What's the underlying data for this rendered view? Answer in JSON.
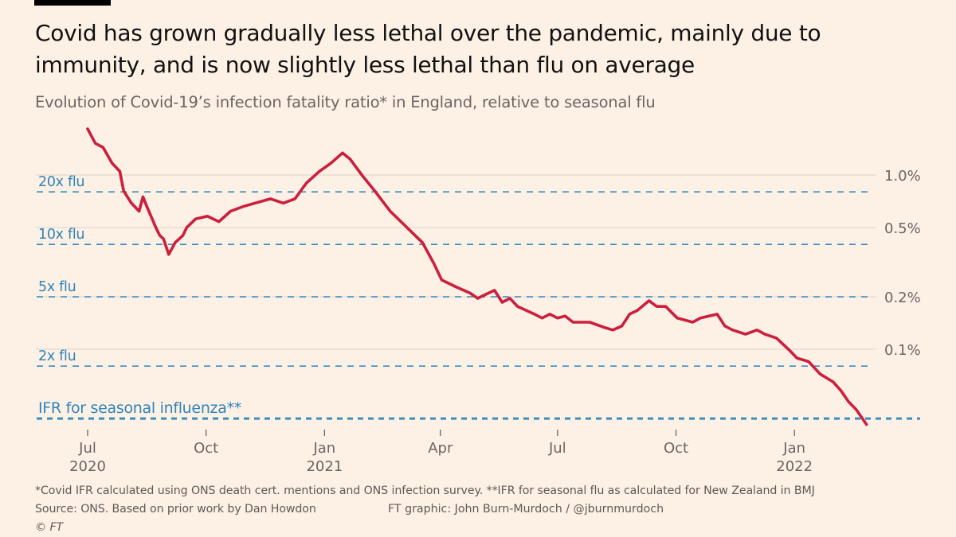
{
  "header": {
    "title": "Covid has grown gradually less lethal over the pandemic, mainly due to immunity, and is now slightly less lethal than flu on average",
    "subtitle": "Evolution of Covid-19’s infection fatality ratio* in England, relative to seasonal flu"
  },
  "footer": {
    "note": "*Covid IFR calculated using ONS death cert. mentions and ONS infection survey. **IFR for seasonal flu as calculated for New Zealand in BMJ",
    "source": "Source: ONS. Based on prior work by Dan Howdon",
    "credit": "FT graphic: John Burn-Murdoch / @jburnmurdoch",
    "copyright": "© FT"
  },
  "chart_data": {
    "type": "line",
    "title": "",
    "xlabel": "",
    "ylabel": "",
    "yscale": "log",
    "grid": true,
    "colors": {
      "line": "#cc1f3d",
      "reference": "#3b8dbd",
      "grid": "#e2d8ce",
      "text": "#6b6560"
    },
    "y_ticks": [
      {
        "value": 1.0,
        "label": "1.0%"
      },
      {
        "value": 0.5,
        "label": "0.5%"
      },
      {
        "value": 0.2,
        "label": "0.2%"
      },
      {
        "value": 0.1,
        "label": "0.1%"
      }
    ],
    "x_ticks": [
      {
        "date": "2020-07-01",
        "label": "Jul",
        "year": "2020"
      },
      {
        "date": "2020-10-01",
        "label": "Oct",
        "year": ""
      },
      {
        "date": "2021-01-01",
        "label": "Jan",
        "year": "2021"
      },
      {
        "date": "2021-04-01",
        "label": "Apr",
        "year": ""
      },
      {
        "date": "2021-07-01",
        "label": "Jul",
        "year": ""
      },
      {
        "date": "2021-10-01",
        "label": "Oct",
        "year": ""
      },
      {
        "date": "2022-01-01",
        "label": "Jan",
        "year": "2022"
      }
    ],
    "reference_lines": [
      {
        "label": "20x flu",
        "value": 0.8
      },
      {
        "label": "10x flu",
        "value": 0.4
      },
      {
        "label": "5x flu",
        "value": 0.2
      },
      {
        "label": "2x flu",
        "value": 0.08
      },
      {
        "label": "IFR for seasonal influenza**",
        "value": 0.04
      }
    ],
    "series": [
      {
        "unit": "%",
        "points": [
          [
            "2020-07-01",
            1.84
          ],
          [
            "2020-07-07",
            1.52
          ],
          [
            "2020-07-13",
            1.44
          ],
          [
            "2020-07-20",
            1.17
          ],
          [
            "2020-07-26",
            1.05
          ],
          [
            "2020-07-29",
            0.81
          ],
          [
            "2020-08-04",
            0.69
          ],
          [
            "2020-08-10",
            0.62
          ],
          [
            "2020-08-13",
            0.75
          ],
          [
            "2020-08-16",
            0.66
          ],
          [
            "2020-08-23",
            0.5
          ],
          [
            "2020-08-26",
            0.45
          ],
          [
            "2020-08-29",
            0.43
          ],
          [
            "2020-09-02",
            0.35
          ],
          [
            "2020-09-07",
            0.41
          ],
          [
            "2020-09-13",
            0.45
          ],
          [
            "2020-09-16",
            0.5
          ],
          [
            "2020-09-23",
            0.56
          ],
          [
            "2020-10-02",
            0.58
          ],
          [
            "2020-10-11",
            0.54
          ],
          [
            "2020-10-20",
            0.62
          ],
          [
            "2020-10-30",
            0.66
          ],
          [
            "2020-11-08",
            0.69
          ],
          [
            "2020-11-20",
            0.73
          ],
          [
            "2020-11-30",
            0.69
          ],
          [
            "2020-12-09",
            0.73
          ],
          [
            "2020-12-18",
            0.9
          ],
          [
            "2020-12-28",
            1.05
          ],
          [
            "2021-01-06",
            1.17
          ],
          [
            "2021-01-15",
            1.34
          ],
          [
            "2021-01-21",
            1.23
          ],
          [
            "2021-01-30",
            1.0
          ],
          [
            "2021-02-09",
            0.81
          ],
          [
            "2021-02-21",
            0.62
          ],
          [
            "2021-03-06",
            0.5
          ],
          [
            "2021-03-18",
            0.41
          ],
          [
            "2021-03-27",
            0.31
          ],
          [
            "2021-04-02",
            0.25
          ],
          [
            "2021-04-12",
            0.23
          ],
          [
            "2021-04-24",
            0.21
          ],
          [
            "2021-04-30",
            0.196
          ],
          [
            "2021-05-06",
            0.206
          ],
          [
            "2021-05-13",
            0.218
          ],
          [
            "2021-05-19",
            0.186
          ],
          [
            "2021-05-25",
            0.196
          ],
          [
            "2021-05-31",
            0.176
          ],
          [
            "2021-06-13",
            0.159
          ],
          [
            "2021-06-19",
            0.151
          ],
          [
            "2021-06-25",
            0.159
          ],
          [
            "2021-07-01",
            0.151
          ],
          [
            "2021-07-07",
            0.155
          ],
          [
            "2021-07-13",
            0.143
          ],
          [
            "2021-07-26",
            0.143
          ],
          [
            "2021-08-07",
            0.133
          ],
          [
            "2021-08-13",
            0.129
          ],
          [
            "2021-08-20",
            0.136
          ],
          [
            "2021-08-26",
            0.159
          ],
          [
            "2021-09-01",
            0.167
          ],
          [
            "2021-09-10",
            0.19
          ],
          [
            "2021-09-16",
            0.176
          ],
          [
            "2021-09-23",
            0.176
          ],
          [
            "2021-10-02",
            0.151
          ],
          [
            "2021-10-14",
            0.143
          ],
          [
            "2021-10-20",
            0.151
          ],
          [
            "2021-11-02",
            0.159
          ],
          [
            "2021-11-08",
            0.136
          ],
          [
            "2021-11-14",
            0.129
          ],
          [
            "2021-11-24",
            0.122
          ],
          [
            "2021-12-03",
            0.129
          ],
          [
            "2021-12-09",
            0.122
          ],
          [
            "2021-12-18",
            0.116
          ],
          [
            "2021-12-28",
            0.099
          ],
          [
            "2022-01-03",
            0.089
          ],
          [
            "2022-01-12",
            0.085
          ],
          [
            "2022-01-21",
            0.072
          ],
          [
            "2022-01-31",
            0.065
          ],
          [
            "2022-02-06",
            0.058
          ],
          [
            "2022-02-12",
            0.05
          ],
          [
            "2022-02-18",
            0.045
          ],
          [
            "2022-02-26",
            0.037
          ]
        ]
      }
    ]
  }
}
